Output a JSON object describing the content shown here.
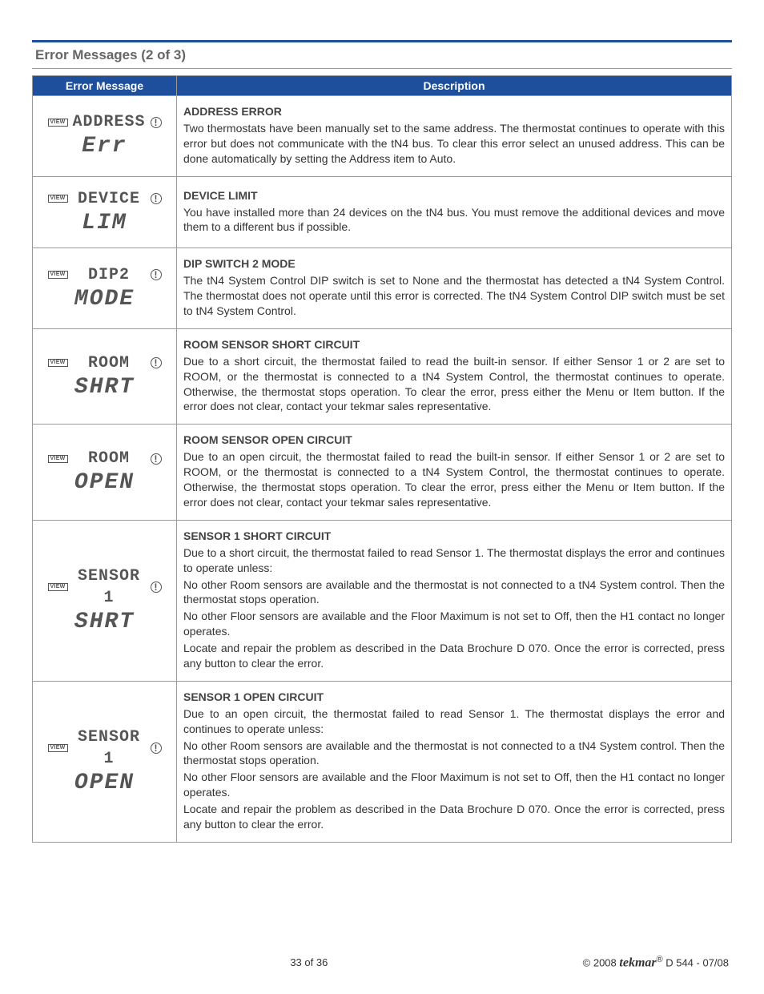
{
  "section_title": "Error Messages (2 of 3)",
  "headers": {
    "col1": "Error Message",
    "col2": "Description"
  },
  "rows": [
    {
      "lcd1": "ADDRESS",
      "lcd2": "Err",
      "title": "ADDRESS ERROR",
      "paras": [
        "Two thermostats have been manually set to the same address. The thermostat continues to operate with this error but does not communicate with the tN4 bus. To clear this error select an unused address. This can be done automatically by setting the Address item to Auto."
      ]
    },
    {
      "lcd1": "DEVICE",
      "lcd2": "LIM",
      "title": "DEVICE LIMIT",
      "paras": [
        "You have installed more than 24 devices on the tN4 bus. You must remove the additional devices and move them to a different bus if possible."
      ]
    },
    {
      "lcd1": "DIP2",
      "lcd2": "MODE",
      "title": "DIP SWITCH 2 MODE",
      "paras": [
        "The tN4 System Control DIP switch is set to None and the thermostat has detected a tN4 System Control. The thermostat does not operate until this error is corrected. The tN4 System Control DIP switch must be set to tN4 System Control."
      ]
    },
    {
      "lcd1": "ROOM",
      "lcd2": "SHRT",
      "title": "ROOM SENSOR SHORT CIRCUIT",
      "paras": [
        "Due to a short circuit, the thermostat failed to read the built-in sensor. If either Sensor 1 or 2 are set to ROOM, or the thermostat is connected to a tN4 System Control, the thermostat continues to operate. Otherwise, the thermostat stops operation. To clear the error, press either the Menu or Item button. If the error does not clear, contact your tekmar sales representative."
      ]
    },
    {
      "lcd1": "ROOM",
      "lcd2": "OPEN",
      "title": "ROOM SENSOR OPEN CIRCUIT",
      "paras": [
        "Due to an open circuit, the thermostat failed to read the built-in sensor. If either Sensor 1 or 2 are set to ROOM, or the thermostat is connected to a tN4 System Control, the thermostat continues to operate. Otherwise, the thermostat stops operation. To clear the error, press either the Menu or Item button. If the error does not clear, contact your tekmar sales representative."
      ]
    },
    {
      "lcd1": "SENSOR 1",
      "lcd2": "SHRT",
      "title": "SENSOR 1 SHORT CIRCUIT",
      "paras": [
        "Due to a short circuit, the thermostat failed to read Sensor 1. The thermostat displays the error and continues to operate unless:",
        "No other Room sensors are available and the thermostat is not connected to a tN4 System control. Then the thermostat stops operation.",
        "No other Floor sensors are available and the Floor Maximum is not set to Off, then the H1 contact no longer operates.",
        "Locate and repair the problem as described in the Data Brochure D 070. Once the error is corrected, press any button to clear the error."
      ]
    },
    {
      "lcd1": "SENSOR 1",
      "lcd2": "OPEN",
      "title": "SENSOR 1 OPEN CIRCUIT",
      "paras": [
        "Due to an open circuit, the thermostat failed to read Sensor 1. The thermostat displays the error and continues to operate unless:",
        "No other Room sensors are available and the thermostat is not connected to a tN4 System control. Then the thermostat stops operation.",
        "No other Floor sensors are available and the Floor Maximum is not set to Off, then the H1 contact no longer operates.",
        "Locate and repair the problem as described in the Data Brochure D 070. Once the error is corrected, press any button to clear the error."
      ]
    }
  ],
  "footer": {
    "page": "33 of 36",
    "copyright": "© 2008",
    "brand": "tekmar",
    "doc": " D 544 - 07/08"
  },
  "view_label": "VIEW",
  "warn_glyph": "!"
}
